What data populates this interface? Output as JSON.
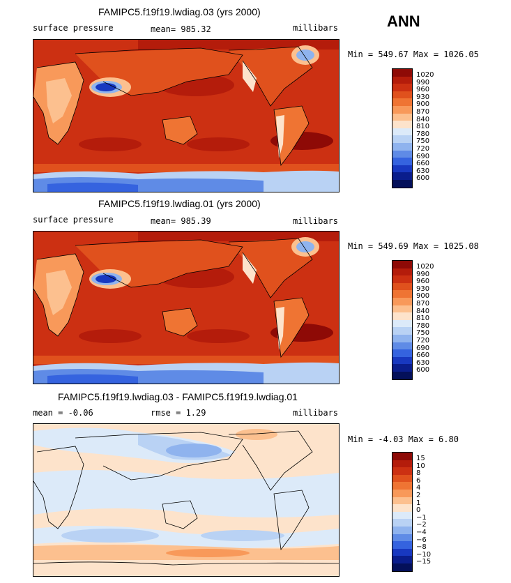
{
  "season": "ANN",
  "panels": [
    {
      "title": "FAMIPC5.f19f19.lwdiag.03 (yrs 2000)",
      "left": "surface pressure",
      "center": "mean= 985.32",
      "units": "millibars",
      "range": "Min = 549.67 Max = 1026.05",
      "legend": [
        "1020",
        "990",
        "960",
        "930",
        "900",
        "870",
        "840",
        "810",
        "780",
        "750",
        "720",
        "690",
        "660",
        "630",
        "600"
      ]
    },
    {
      "title": "FAMIPC5.f19f19.lwdiag.01 (yrs 2000)",
      "left": "surface pressure",
      "center": "mean= 985.39",
      "units": "millibars",
      "range": "Min = 549.69 Max = 1025.08",
      "legend": [
        "1020",
        "990",
        "960",
        "930",
        "900",
        "870",
        "840",
        "810",
        "780",
        "750",
        "720",
        "690",
        "660",
        "630",
        "600"
      ]
    },
    {
      "title": "FAMIPC5.f19f19.lwdiag.03 - FAMIPC5.f19f19.lwdiag.01",
      "left": "mean =   -0.06",
      "center": "rmse =    1.29",
      "units": "millibars",
      "range": "Min =   -4.03 Max =    6.80",
      "legend": [
        "15",
        "10",
        "8",
        "6",
        "4",
        "2",
        "1",
        "0",
        "−1",
        "−2",
        "−4",
        "−6",
        "−8",
        "−10",
        "−15"
      ]
    }
  ],
  "colors": {
    "abs_scale": [
      "#8e0a06",
      "#b41c0b",
      "#cc3012",
      "#e0511d",
      "#ef7433",
      "#f8995a",
      "#fcc08f",
      "#fde3cb",
      "#dceaf9",
      "#b9d2f4",
      "#8fb3ee",
      "#5f8be6",
      "#3563df",
      "#1838c0",
      "#0a1d8c",
      "#04105a"
    ],
    "diff_scale": [
      "#8e0a06",
      "#b41c0b",
      "#cc3012",
      "#e0511d",
      "#ef7433",
      "#f8995a",
      "#fcc08f",
      "#fde3cb",
      "#dceaf9",
      "#b9d2f4",
      "#8fb3ee",
      "#5f8be6",
      "#3563df",
      "#1838c0",
      "#0a1d8c",
      "#04105a"
    ]
  }
}
